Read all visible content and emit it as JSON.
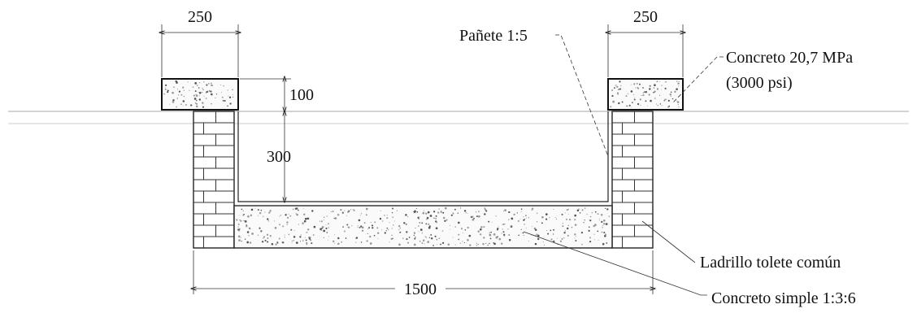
{
  "drawing": {
    "dimensions": {
      "left_cap_width": "250",
      "right_cap_width": "250",
      "cap_height": "100",
      "channel_depth": "300",
      "overall_width": "1500"
    },
    "callouts": {
      "plaster": "Pañete 1:5",
      "cap_concrete_line1": "Concreto 20,7 MPa",
      "cap_concrete_line2": "(3000 psi)",
      "brick": "Ladrillo tolete común",
      "base_concrete": "Concreto simple 1:3:6"
    }
  }
}
